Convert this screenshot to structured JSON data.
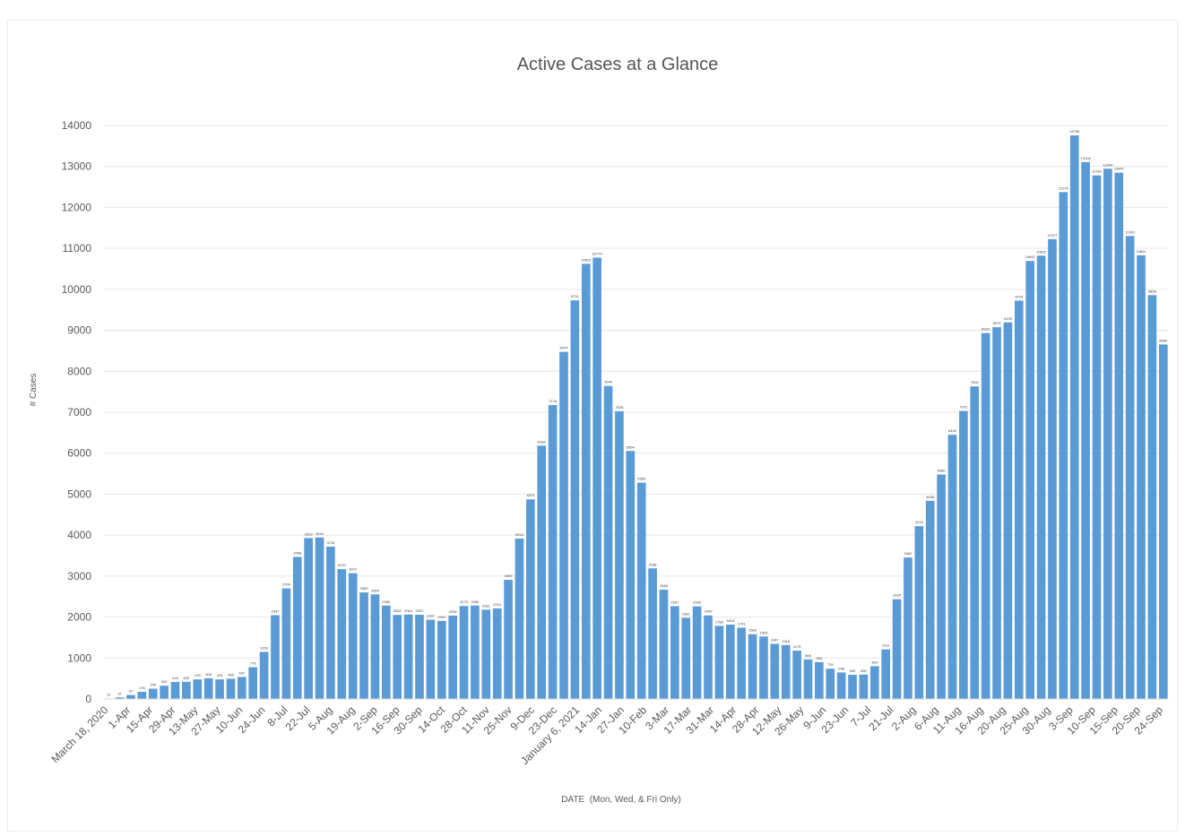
{
  "chart_data": {
    "type": "bar",
    "title": "Active Cases at a Glance",
    "xlabel": "DATE  (Mon, Wed, & Fri Only)",
    "ylabel": "# Cases",
    "ylim": [
      0,
      14000
    ],
    "yticks": [
      0,
      1000,
      2000,
      3000,
      4000,
      5000,
      6000,
      7000,
      8000,
      9000,
      10000,
      11000,
      12000,
      13000,
      14000
    ],
    "grid": true,
    "bar_color": "#5B9BD5",
    "x_tick_labels": [
      "March 18, 2020",
      "1-Apr",
      "15-Apr",
      "29-Apr",
      "13-May",
      "27-May",
      "10-Jun",
      "24-Jun",
      "8-Jul",
      "22-Jul",
      "5-Aug",
      "19-Aug",
      "2-Sep",
      "16-Sep",
      "30-Sep",
      "14-Oct",
      "28-Oct",
      "11-Nov",
      "25-Nov",
      "9-Dec",
      "23-Dec",
      "January 6, 2021",
      "14-Jan",
      "27-Jan",
      "10-Feb",
      "3-Mar",
      "17-Mar",
      "31-Mar",
      "14-Apr",
      "28-Apr",
      "12-May",
      "26-May",
      "9-Jun",
      "23-Jun",
      "7-Jul",
      "21-Jul",
      "2-Aug",
      "6-Aug",
      "11-Aug",
      "16-Aug",
      "20-Aug",
      "25-Aug",
      "30-Aug",
      "3-Sep",
      "10-Sep",
      "15-Sep",
      "20-Sep",
      "24-Sep"
    ],
    "values": [
      11,
      37,
      97,
      176,
      250,
      324,
      416,
      420,
      478,
      506,
      478,
      495,
      537,
      776,
      1150,
      2047,
      2700,
      3468,
      3929,
      3942,
      3718,
      3170,
      3071,
      2600,
      2554,
      2280,
      2052,
      2061,
      2057,
      1937,
      1907,
      2036,
      2270,
      2280,
      2181,
      2210,
      2909,
      3915,
      4873,
      6184,
      7176,
      8474,
      9731,
      10623,
      10774,
      7640,
      7025,
      6054,
      5280,
      3188,
      2669,
      2267,
      1981,
      2260,
      2040,
      1786,
      1816,
      1741,
      1583,
      1525,
      1347,
      1318,
      1179,
      965,
      900,
      739,
      648,
      590,
      595,
      800,
      1211,
      2435,
      3452,
      4219,
      4838,
      5480,
      6449,
      7031,
      7630,
      8932,
      9075,
      9193,
      9724,
      10692,
      10822,
      11227,
      12374,
      13756,
      13106,
      12781,
      12944,
      12847,
      11302,
      10831,
      9858,
      8654
    ]
  }
}
